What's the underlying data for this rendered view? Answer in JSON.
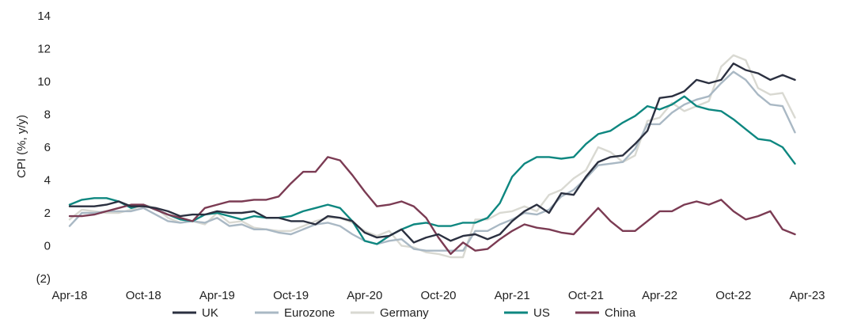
{
  "chart_data": {
    "type": "line",
    "ylabel": "CPI (%, y/y)",
    "ylim": [
      -2,
      14
    ],
    "yticks": [
      -2,
      0,
      2,
      4,
      6,
      8,
      10,
      12,
      14
    ],
    "ytick_labels": [
      "(2)",
      "0",
      "2",
      "4",
      "6",
      "8",
      "10",
      "12",
      "14"
    ],
    "xlim": [
      "2018-04",
      "2023-04"
    ],
    "xtick_labels": [
      "Apr-18",
      "Oct-18",
      "Apr-19",
      "Oct-19",
      "Apr-20",
      "Oct-20",
      "Apr-21",
      "Oct-21",
      "Apr-22",
      "Oct-22",
      "Apr-23"
    ],
    "xtick_months": [
      "2018-04",
      "2018-10",
      "2019-04",
      "2019-10",
      "2020-04",
      "2020-10",
      "2021-04",
      "2021-10",
      "2022-04",
      "2022-10",
      "2023-04"
    ],
    "grid": false,
    "legend_position": "bottom",
    "x": [
      "2018-04",
      "2018-05",
      "2018-06",
      "2018-07",
      "2018-08",
      "2018-09",
      "2018-10",
      "2018-11",
      "2018-12",
      "2019-01",
      "2019-02",
      "2019-03",
      "2019-04",
      "2019-05",
      "2019-06",
      "2019-07",
      "2019-08",
      "2019-09",
      "2019-10",
      "2019-11",
      "2019-12",
      "2020-01",
      "2020-02",
      "2020-03",
      "2020-04",
      "2020-05",
      "2020-06",
      "2020-07",
      "2020-08",
      "2020-09",
      "2020-10",
      "2020-11",
      "2020-12",
      "2021-01",
      "2021-02",
      "2021-03",
      "2021-04",
      "2021-05",
      "2021-06",
      "2021-07",
      "2021-08",
      "2021-09",
      "2021-10",
      "2021-11",
      "2021-12",
      "2022-01",
      "2022-02",
      "2022-03",
      "2022-04",
      "2022-05",
      "2022-06",
      "2022-07",
      "2022-08",
      "2022-09",
      "2022-10",
      "2022-11",
      "2022-12",
      "2023-01",
      "2023-02",
      "2023-03"
    ],
    "series": [
      {
        "name": "UK",
        "color": "#2b3040",
        "values": [
          2.4,
          2.4,
          2.4,
          2.5,
          2.7,
          2.4,
          2.4,
          2.3,
          2.1,
          1.8,
          1.9,
          1.9,
          2.1,
          2.0,
          2.0,
          2.1,
          1.7,
          1.7,
          1.5,
          1.5,
          1.3,
          1.8,
          1.7,
          1.5,
          0.8,
          0.5,
          0.6,
          1.0,
          0.2,
          0.5,
          0.7,
          0.3,
          0.6,
          0.7,
          0.4,
          0.7,
          1.5,
          2.1,
          2.5,
          2.0,
          3.2,
          3.1,
          4.2,
          5.1,
          5.4,
          5.5,
          6.2,
          7.0,
          9.0,
          9.1,
          9.4,
          10.1,
          9.9,
          10.1,
          11.1,
          10.7,
          10.5,
          10.1,
          10.4,
          10.1
        ]
      },
      {
        "name": "Eurozone",
        "color": "#a9b8c4",
        "values": [
          1.2,
          2.0,
          2.0,
          2.1,
          2.1,
          2.1,
          2.3,
          1.9,
          1.5,
          1.4,
          1.5,
          1.4,
          1.7,
          1.2,
          1.3,
          1.0,
          1.0,
          0.8,
          0.7,
          1.0,
          1.3,
          1.4,
          1.2,
          0.7,
          0.3,
          0.1,
          0.3,
          0.4,
          -0.2,
          -0.3,
          -0.3,
          -0.3,
          -0.3,
          0.9,
          0.9,
          1.3,
          1.6,
          2.0,
          1.9,
          2.2,
          3.0,
          3.4,
          4.1,
          4.9,
          5.0,
          5.1,
          5.9,
          7.4,
          7.4,
          8.1,
          8.6,
          8.9,
          9.1,
          9.9,
          10.6,
          10.1,
          9.2,
          8.6,
          8.5,
          6.9
        ]
      },
      {
        "name": "Germany",
        "color": "#d9d9d2",
        "values": [
          1.6,
          2.2,
          2.1,
          2.0,
          2.0,
          2.2,
          2.5,
          2.3,
          1.7,
          1.4,
          1.5,
          1.3,
          2.0,
          1.4,
          1.5,
          1.1,
          1.0,
          0.9,
          0.9,
          1.2,
          1.5,
          1.7,
          1.7,
          1.4,
          0.9,
          0.6,
          0.9,
          0.0,
          -0.1,
          -0.4,
          -0.5,
          -0.7,
          -0.7,
          1.6,
          1.6,
          2.0,
          2.1,
          2.4,
          2.1,
          3.1,
          3.4,
          4.1,
          4.6,
          6.0,
          5.7,
          5.1,
          5.5,
          7.6,
          7.8,
          8.7,
          8.2,
          8.5,
          8.8,
          10.9,
          11.6,
          11.3,
          9.6,
          9.2,
          9.3,
          7.8
        ]
      },
      {
        "name": "US",
        "color": "#0e8780",
        "values": [
          2.5,
          2.8,
          2.9,
          2.9,
          2.7,
          2.3,
          2.5,
          2.2,
          1.9,
          1.6,
          1.5,
          1.9,
          2.0,
          1.8,
          1.6,
          1.8,
          1.7,
          1.7,
          1.8,
          2.1,
          2.3,
          2.5,
          2.3,
          1.5,
          0.3,
          0.1,
          0.6,
          1.0,
          1.3,
          1.4,
          1.2,
          1.2,
          1.4,
          1.4,
          1.7,
          2.6,
          4.2,
          5.0,
          5.4,
          5.4,
          5.3,
          5.4,
          6.2,
          6.8,
          7.0,
          7.5,
          7.9,
          8.5,
          8.3,
          8.6,
          9.1,
          8.5,
          8.3,
          8.2,
          7.7,
          7.1,
          6.5,
          6.4,
          6.0,
          5.0
        ]
      },
      {
        "name": "China",
        "color": "#7b3b53",
        "values": [
          1.8,
          1.8,
          1.9,
          2.1,
          2.3,
          2.5,
          2.5,
          2.2,
          1.9,
          1.7,
          1.5,
          2.3,
          2.5,
          2.7,
          2.7,
          2.8,
          2.8,
          3.0,
          3.8,
          4.5,
          4.5,
          5.4,
          5.2,
          4.3,
          3.3,
          2.4,
          2.5,
          2.7,
          2.4,
          1.7,
          0.5,
          -0.5,
          0.2,
          -0.3,
          -0.2,
          0.4,
          0.9,
          1.3,
          1.1,
          1.0,
          0.8,
          0.7,
          1.5,
          2.3,
          1.5,
          0.9,
          0.9,
          1.5,
          2.1,
          2.1,
          2.5,
          2.7,
          2.5,
          2.8,
          2.1,
          1.6,
          1.8,
          2.1,
          1.0,
          0.7
        ]
      }
    ]
  }
}
